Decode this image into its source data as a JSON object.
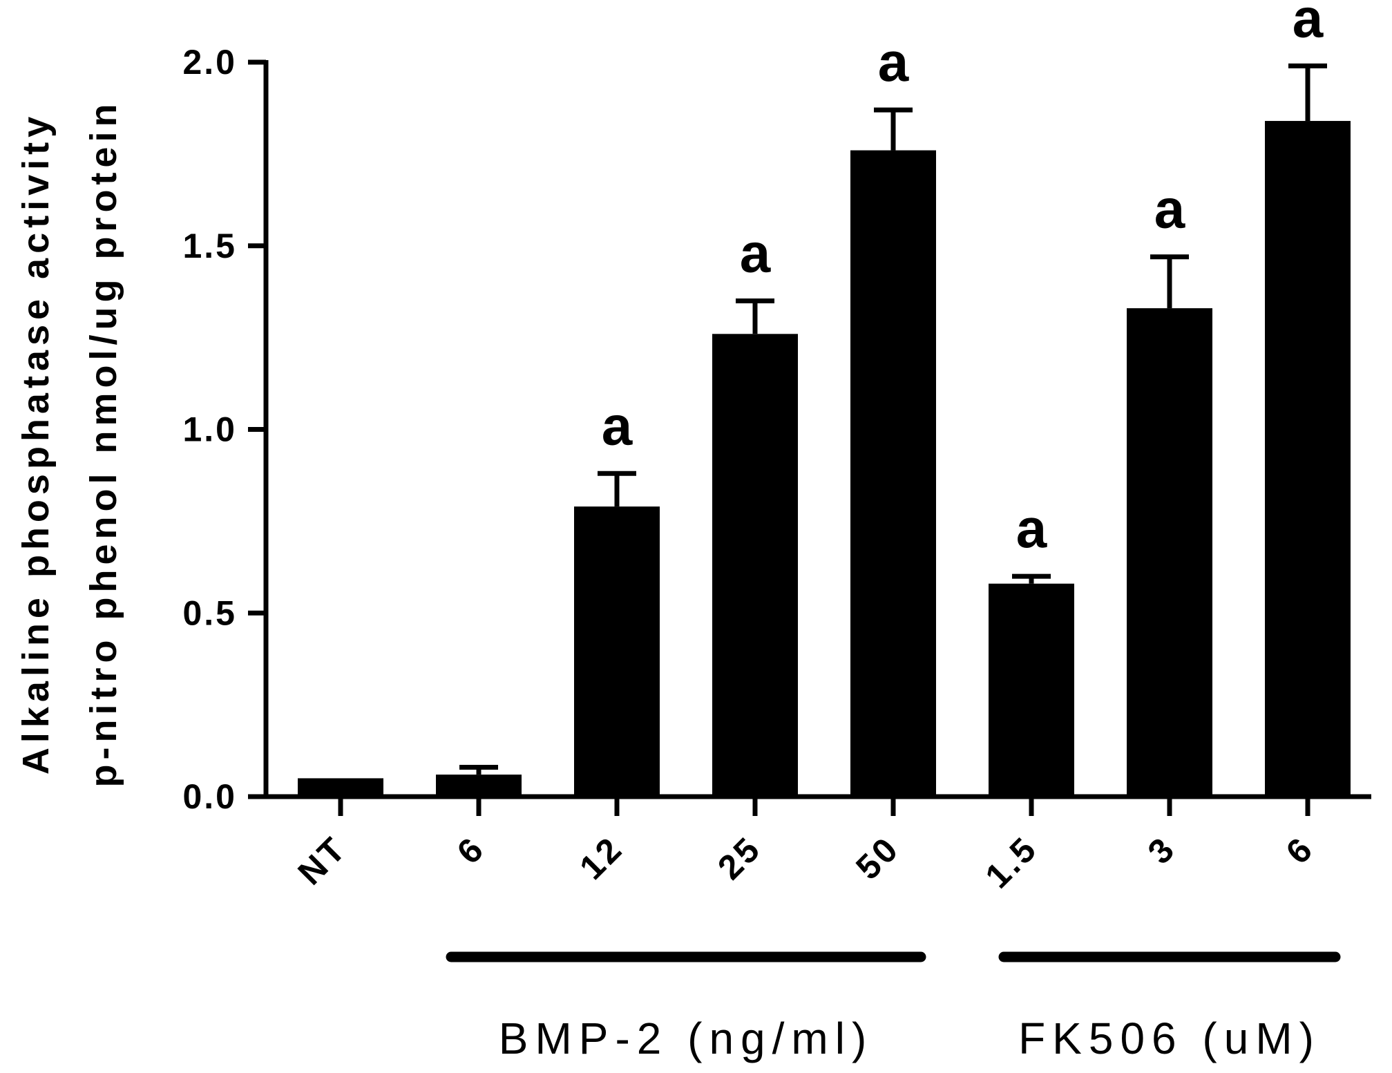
{
  "chart_data": {
    "type": "bar",
    "title": "",
    "xlabel": "",
    "ylabel_lines": [
      "Alkaline phosphatase activity",
      "p-nitro phenol nmol/ug protein"
    ],
    "ylim": [
      0,
      2.0
    ],
    "yticks": [
      0.0,
      0.5,
      1.0,
      1.5,
      2.0
    ],
    "ytick_labels": [
      "0.0",
      "0.5",
      "1.0",
      "1.5",
      "2.0"
    ],
    "categories": [
      "NT",
      "6",
      "12",
      "25",
      "50",
      "1.5",
      "3",
      "6"
    ],
    "values": [
      0.05,
      0.06,
      0.79,
      1.26,
      1.76,
      0.58,
      1.33,
      1.84
    ],
    "errors": [
      0.0,
      0.02,
      0.09,
      0.09,
      0.11,
      0.02,
      0.14,
      0.15
    ],
    "significance": [
      "",
      "",
      "a",
      "a",
      "a",
      "a",
      "a",
      "a"
    ],
    "groups": [
      {
        "label": "BMP-2 (ng/ml)",
        "start": 1,
        "end": 4
      },
      {
        "label": "FK506 (uM)",
        "start": 5,
        "end": 7
      }
    ],
    "bar_color": "#000000",
    "grid": false,
    "legend": "none"
  }
}
